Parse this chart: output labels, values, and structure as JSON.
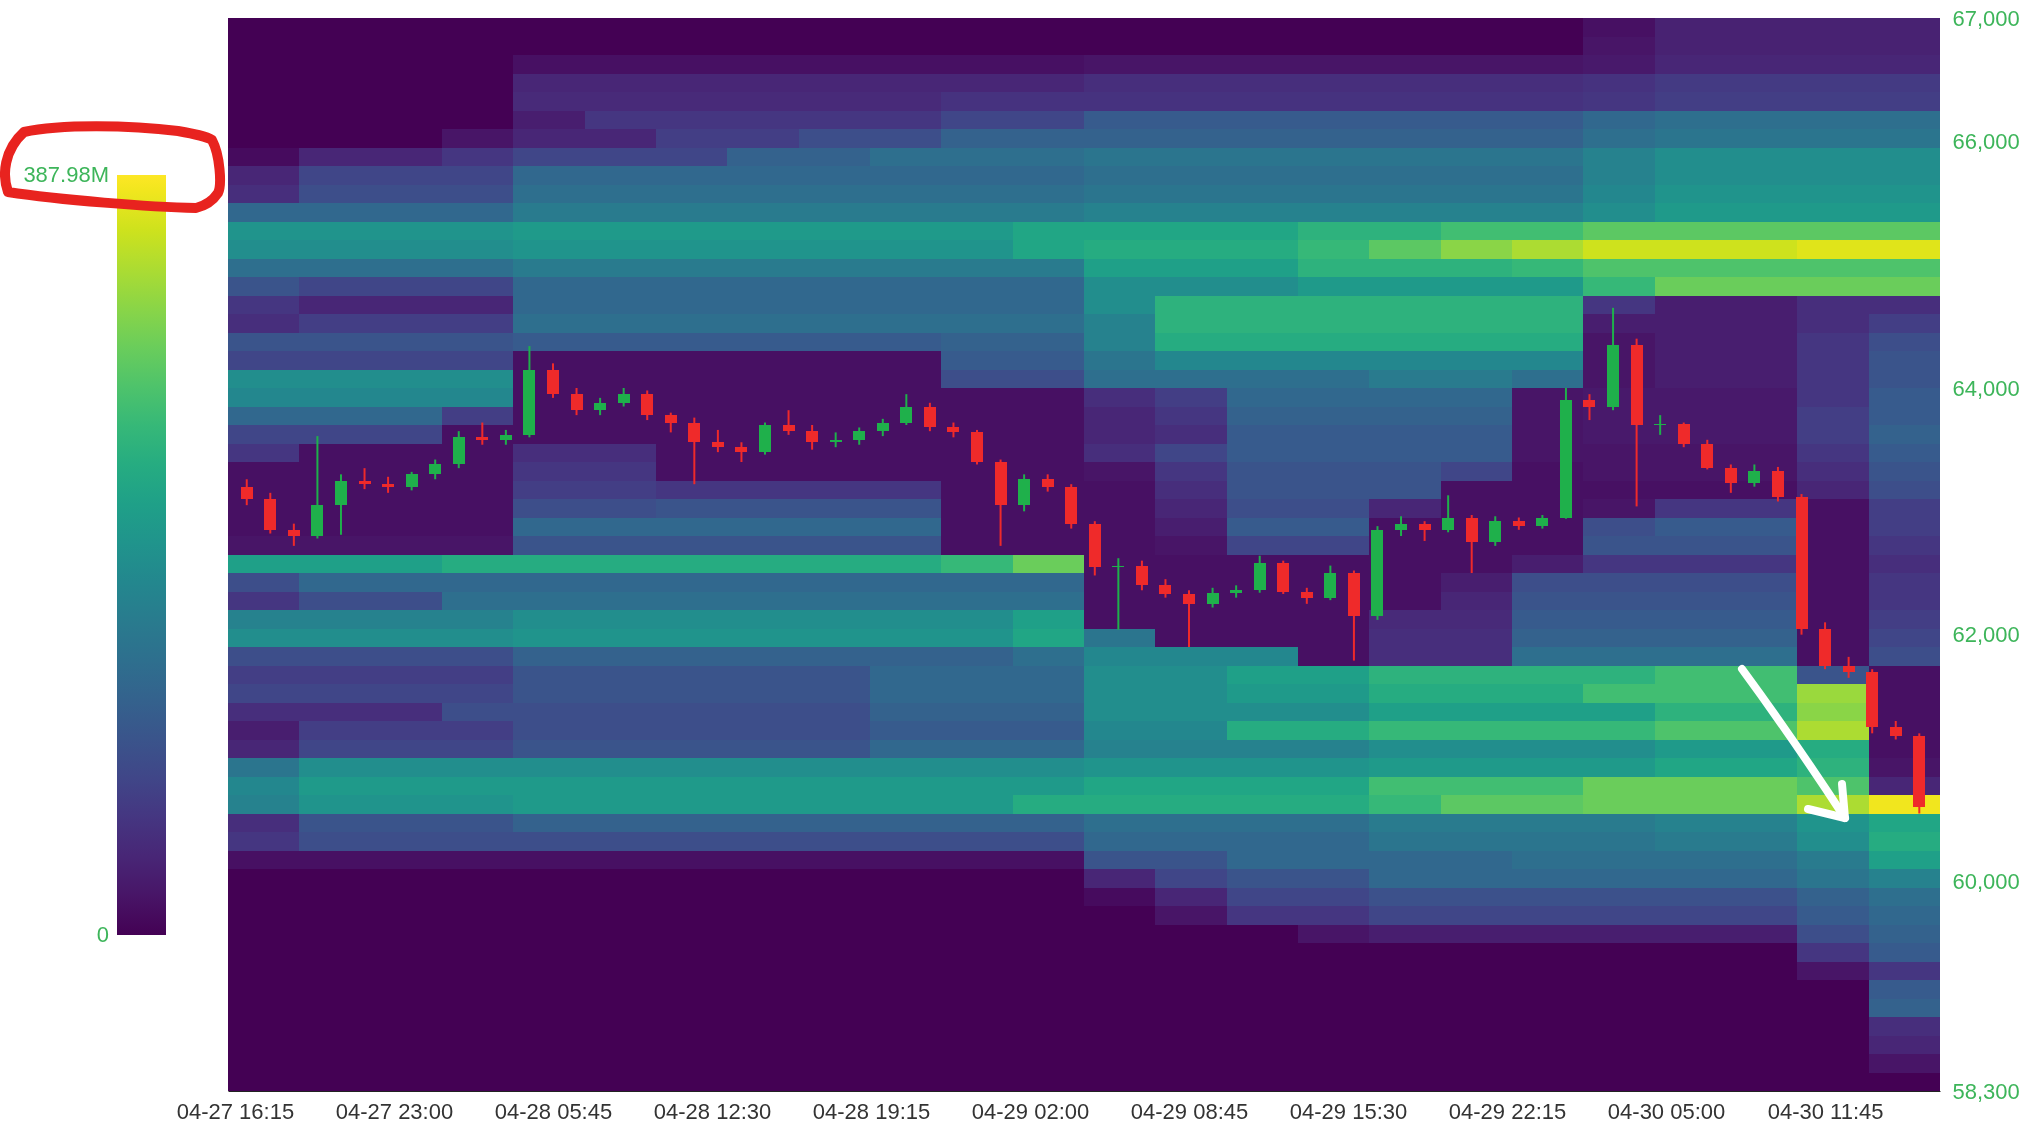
{
  "chart_data": [
    {
      "type": "heatmap",
      "categories": [
        null,
        null,
        null,
        null,
        null,
        null,
        null,
        null,
        null,
        null,
        null,
        null,
        null,
        null,
        null,
        null,
        null,
        null,
        null,
        null,
        null,
        null,
        null,
        null
      ],
      "y_categories": [
        null,
        null,
        null,
        null,
        null,
        null,
        null,
        null,
        null,
        null,
        null,
        null,
        null,
        null,
        null,
        null,
        null,
        null,
        null,
        null,
        null,
        null,
        null,
        null,
        null,
        null,
        null,
        null,
        null,
        null,
        null,
        null,
        null,
        null,
        null,
        null,
        null,
        null,
        null,
        null,
        null,
        null,
        null,
        null,
        null,
        null,
        null,
        null,
        null,
        null,
        null,
        null,
        null,
        null,
        null,
        null,
        null,
        null
      ],
      "cells": [
        [
          0,
          0,
          0,
          0,
          0,
          0,
          0,
          0,
          0,
          0,
          0,
          0,
          0,
          0,
          0,
          0,
          0,
          0,
          0,
          15,
          35,
          35,
          35,
          35
        ],
        [
          0,
          0,
          0,
          0,
          0,
          0,
          0,
          0,
          0,
          0,
          0,
          0,
          0,
          0,
          0,
          0,
          0,
          0,
          0,
          20,
          35,
          35,
          35,
          35
        ],
        [
          0,
          0,
          0,
          0,
          15,
          15,
          15,
          15,
          15,
          15,
          15,
          15,
          20,
          20,
          20,
          20,
          20,
          20,
          20,
          25,
          40,
          40,
          40,
          40
        ],
        [
          0,
          0,
          0,
          0,
          40,
          40,
          40,
          40,
          40,
          40,
          40,
          40,
          50,
          50,
          50,
          50,
          50,
          50,
          50,
          55,
          65,
          65,
          65,
          65
        ],
        [
          0,
          0,
          0,
          0,
          45,
          45,
          45,
          45,
          45,
          45,
          55,
          55,
          55,
          55,
          55,
          55,
          55,
          55,
          55,
          60,
          70,
          70,
          70,
          70
        ],
        [
          0,
          0,
          0,
          0,
          30,
          60,
          60,
          60,
          60,
          60,
          80,
          80,
          110,
          110,
          110,
          110,
          110,
          110,
          110,
          130,
          140,
          140,
          140,
          140
        ],
        [
          0,
          0,
          0,
          20,
          40,
          40,
          70,
          70,
          90,
          90,
          120,
          120,
          120,
          120,
          120,
          120,
          120,
          120,
          120,
          140,
          150,
          150,
          150,
          150
        ],
        [
          10,
          40,
          40,
          60,
          80,
          80,
          80,
          120,
          120,
          140,
          140,
          140,
          150,
          150,
          150,
          150,
          150,
          150,
          150,
          170,
          190,
          190,
          190,
          190
        ],
        [
          40,
          80,
          80,
          80,
          130,
          130,
          130,
          130,
          130,
          130,
          130,
          130,
          140,
          140,
          140,
          140,
          140,
          140,
          140,
          170,
          190,
          190,
          190,
          190
        ],
        [
          50,
          90,
          90,
          90,
          140,
          140,
          140,
          140,
          140,
          140,
          140,
          140,
          150,
          150,
          150,
          150,
          150,
          150,
          150,
          180,
          200,
          200,
          200,
          200
        ],
        [
          130,
          130,
          130,
          130,
          160,
          160,
          160,
          160,
          160,
          160,
          160,
          160,
          170,
          170,
          170,
          170,
          170,
          170,
          170,
          190,
          210,
          210,
          210,
          210
        ],
        [
          200,
          200,
          200,
          200,
          210,
          210,
          210,
          210,
          210,
          210,
          210,
          230,
          230,
          230,
          230,
          250,
          250,
          270,
          270,
          290,
          290,
          290,
          290,
          290
        ],
        [
          190,
          190,
          190,
          190,
          200,
          200,
          200,
          200,
          200,
          200,
          200,
          230,
          240,
          240,
          240,
          260,
          290,
          320,
          340,
          360,
          360,
          360,
          370,
          370
        ],
        [
          140,
          140,
          140,
          140,
          160,
          160,
          160,
          160,
          160,
          160,
          160,
          160,
          220,
          220,
          220,
          250,
          250,
          250,
          260,
          280,
          280,
          280,
          280,
          280
        ],
        [
          100,
          80,
          80,
          80,
          130,
          130,
          130,
          130,
          130,
          130,
          130,
          130,
          190,
          190,
          190,
          210,
          210,
          210,
          210,
          260,
          300,
          300,
          300,
          300
        ],
        [
          60,
          40,
          40,
          40,
          130,
          130,
          130,
          130,
          130,
          130,
          130,
          130,
          190,
          250,
          250,
          250,
          250,
          250,
          250,
          60,
          30,
          30,
          50,
          50
        ],
        [
          50,
          70,
          70,
          70,
          140,
          140,
          140,
          140,
          140,
          140,
          140,
          140,
          170,
          250,
          250,
          250,
          250,
          250,
          250,
          30,
          30,
          30,
          50,
          70
        ],
        [
          100,
          100,
          100,
          100,
          110,
          110,
          110,
          110,
          110,
          110,
          120,
          120,
          170,
          240,
          240,
          240,
          240,
          240,
          240,
          20,
          30,
          30,
          60,
          90
        ],
        [
          80,
          80,
          80,
          80,
          15,
          15,
          15,
          15,
          15,
          15,
          110,
          110,
          150,
          180,
          180,
          180,
          180,
          180,
          180,
          20,
          30,
          30,
          60,
          100
        ],
        [
          190,
          190,
          190,
          190,
          15,
          15,
          15,
          15,
          15,
          15,
          90,
          90,
          140,
          140,
          140,
          140,
          160,
          160,
          140,
          20,
          30,
          30,
          60,
          100
        ],
        [
          180,
          180,
          180,
          180,
          15,
          15,
          15,
          15,
          15,
          15,
          15,
          15,
          50,
          70,
          130,
          130,
          130,
          130,
          20,
          25,
          25,
          25,
          60,
          110
        ],
        [
          130,
          130,
          130,
          70,
          15,
          15,
          15,
          15,
          15,
          15,
          15,
          15,
          40,
          60,
          120,
          120,
          120,
          120,
          20,
          25,
          25,
          25,
          70,
          110
        ],
        [
          80,
          80,
          80,
          15,
          15,
          15,
          15,
          15,
          15,
          15,
          15,
          15,
          40,
          50,
          110,
          110,
          110,
          110,
          20,
          25,
          25,
          25,
          70,
          120
        ],
        [
          60,
          15,
          15,
          15,
          50,
          50,
          15,
          15,
          15,
          15,
          15,
          15,
          50,
          80,
          110,
          110,
          110,
          110,
          20,
          20,
          20,
          20,
          60,
          110
        ],
        [
          15,
          15,
          15,
          15,
          60,
          60,
          15,
          15,
          15,
          15,
          15,
          15,
          20,
          60,
          100,
          100,
          100,
          80,
          15,
          20,
          20,
          20,
          50,
          100
        ],
        [
          15,
          15,
          15,
          15,
          70,
          70,
          60,
          60,
          60,
          60,
          15,
          15,
          15,
          50,
          100,
          100,
          100,
          15,
          15,
          15,
          15,
          15,
          40,
          90
        ],
        [
          15,
          15,
          15,
          15,
          90,
          90,
          100,
          100,
          100,
          100,
          15,
          15,
          15,
          40,
          90,
          90,
          40,
          15,
          15,
          20,
          60,
          60,
          15,
          70
        ],
        [
          15,
          15,
          15,
          15,
          130,
          130,
          130,
          130,
          130,
          130,
          15,
          15,
          15,
          30,
          110,
          110,
          15,
          15,
          15,
          90,
          110,
          110,
          15,
          70
        ],
        [
          20,
          20,
          20,
          20,
          100,
          100,
          100,
          100,
          100,
          100,
          15,
          15,
          15,
          20,
          80,
          80,
          15,
          15,
          15,
          100,
          100,
          100,
          15,
          60
        ],
        [
          220,
          220,
          220,
          240,
          240,
          240,
          240,
          240,
          240,
          240,
          260,
          300,
          15,
          15,
          15,
          15,
          15,
          15,
          30,
          60,
          60,
          60,
          15,
          50
        ],
        [
          90,
          130,
          130,
          130,
          130,
          130,
          130,
          130,
          130,
          130,
          130,
          130,
          15,
          15,
          15,
          15,
          15,
          30,
          90,
          90,
          90,
          90,
          15,
          60
        ],
        [
          60,
          90,
          90,
          140,
          140,
          140,
          140,
          140,
          140,
          140,
          140,
          140,
          15,
          15,
          15,
          15,
          15,
          40,
          100,
          100,
          100,
          100,
          15,
          60
        ],
        [
          170,
          170,
          170,
          170,
          190,
          190,
          190,
          190,
          190,
          190,
          190,
          220,
          15,
          15,
          15,
          15,
          45,
          45,
          110,
          110,
          110,
          110,
          15,
          70
        ],
        [
          190,
          190,
          190,
          190,
          200,
          200,
          200,
          200,
          200,
          200,
          200,
          230,
          150,
          15,
          15,
          15,
          50,
          50,
          120,
          120,
          120,
          120,
          15,
          80
        ],
        [
          90,
          90,
          90,
          90,
          120,
          120,
          120,
          120,
          120,
          120,
          120,
          140,
          180,
          180,
          180,
          15,
          50,
          50,
          140,
          140,
          140,
          140,
          15,
          90
        ],
        [
          70,
          70,
          70,
          70,
          100,
          100,
          100,
          100,
          100,
          130,
          130,
          130,
          190,
          190,
          220,
          220,
          250,
          250,
          250,
          250,
          270,
          270,
          100,
          15
        ],
        [
          80,
          80,
          80,
          80,
          100,
          100,
          100,
          100,
          100,
          130,
          130,
          130,
          190,
          190,
          210,
          210,
          240,
          240,
          240,
          270,
          270,
          270,
          330,
          15
        ],
        [
          50,
          50,
          50,
          90,
          90,
          90,
          90,
          90,
          90,
          120,
          120,
          120,
          190,
          190,
          190,
          190,
          220,
          220,
          220,
          220,
          250,
          250,
          320,
          15
        ],
        [
          30,
          70,
          70,
          70,
          90,
          90,
          90,
          90,
          90,
          110,
          110,
          110,
          180,
          180,
          240,
          240,
          260,
          260,
          260,
          260,
          280,
          280,
          340,
          15
        ],
        [
          40,
          80,
          80,
          80,
          100,
          100,
          100,
          100,
          100,
          130,
          130,
          130,
          170,
          170,
          170,
          170,
          190,
          190,
          190,
          190,
          210,
          210,
          240,
          15
        ],
        [
          150,
          190,
          190,
          190,
          190,
          190,
          190,
          190,
          190,
          190,
          190,
          190,
          200,
          200,
          200,
          200,
          210,
          210,
          210,
          210,
          230,
          230,
          250,
          20
        ],
        [
          180,
          210,
          210,
          210,
          210,
          210,
          210,
          210,
          210,
          210,
          210,
          210,
          230,
          230,
          230,
          230,
          270,
          270,
          270,
          300,
          300,
          300,
          280,
          40
        ],
        [
          170,
          200,
          200,
          200,
          210,
          210,
          210,
          210,
          210,
          210,
          210,
          240,
          240,
          240,
          240,
          240,
          260,
          290,
          290,
          300,
          300,
          300,
          340,
          380
        ],
        [
          50,
          100,
          100,
          100,
          120,
          120,
          120,
          120,
          120,
          120,
          120,
          120,
          140,
          140,
          140,
          140,
          160,
          160,
          160,
          160,
          170,
          170,
          200,
          230
        ],
        [
          60,
          90,
          90,
          90,
          90,
          90,
          90,
          90,
          90,
          90,
          90,
          90,
          130,
          130,
          130,
          130,
          150,
          150,
          150,
          150,
          160,
          160,
          190,
          240
        ],
        [
          15,
          15,
          15,
          15,
          15,
          15,
          15,
          15,
          15,
          15,
          15,
          15,
          100,
          100,
          130,
          130,
          130,
          130,
          140,
          140,
          140,
          140,
          160,
          220
        ],
        [
          0,
          0,
          0,
          0,
          0,
          0,
          0,
          0,
          0,
          0,
          0,
          0,
          40,
          80,
          100,
          100,
          130,
          130,
          130,
          130,
          130,
          130,
          150,
          170
        ],
        [
          0,
          0,
          0,
          0,
          0,
          0,
          0,
          0,
          0,
          0,
          0,
          0,
          10,
          40,
          80,
          80,
          95,
          95,
          95,
          95,
          95,
          95,
          120,
          140
        ],
        [
          0,
          0,
          0,
          0,
          0,
          0,
          0,
          0,
          0,
          0,
          0,
          0,
          0,
          20,
          60,
          60,
          80,
          80,
          80,
          80,
          80,
          80,
          110,
          130
        ],
        [
          0,
          0,
          0,
          0,
          0,
          0,
          0,
          0,
          0,
          0,
          0,
          0,
          0,
          0,
          0,
          20,
          30,
          30,
          30,
          30,
          30,
          30,
          90,
          120
        ],
        [
          0,
          0,
          0,
          0,
          0,
          0,
          0,
          0,
          0,
          0,
          0,
          0,
          0,
          0,
          0,
          0,
          0,
          0,
          0,
          0,
          0,
          0,
          60,
          110
        ],
        [
          0,
          0,
          0,
          0,
          0,
          0,
          0,
          0,
          0,
          0,
          0,
          0,
          0,
          0,
          0,
          0,
          0,
          0,
          0,
          0,
          0,
          0,
          20,
          60
        ],
        [
          0,
          0,
          0,
          0,
          0,
          0,
          0,
          0,
          0,
          0,
          0,
          0,
          0,
          0,
          0,
          0,
          0,
          0,
          0,
          0,
          0,
          0,
          0,
          110
        ],
        [
          0,
          0,
          0,
          0,
          0,
          0,
          0,
          0,
          0,
          0,
          0,
          0,
          0,
          0,
          0,
          0,
          0,
          0,
          0,
          0,
          0,
          0,
          0,
          120
        ],
        [
          0,
          0,
          0,
          0,
          0,
          0,
          0,
          0,
          0,
          0,
          0,
          0,
          0,
          0,
          0,
          0,
          0,
          0,
          0,
          0,
          0,
          0,
          0,
          50
        ],
        [
          0,
          0,
          0,
          0,
          0,
          0,
          0,
          0,
          0,
          0,
          0,
          0,
          0,
          0,
          0,
          0,
          0,
          0,
          0,
          0,
          0,
          0,
          0,
          40
        ],
        [
          0,
          0,
          0,
          0,
          0,
          0,
          0,
          0,
          0,
          0,
          0,
          0,
          0,
          0,
          0,
          0,
          0,
          0,
          0,
          0,
          0,
          0,
          0,
          20
        ],
        [
          0,
          0,
          0,
          0,
          0,
          0,
          0,
          0,
          0,
          0,
          0,
          0,
          0,
          0,
          0,
          0,
          0,
          0,
          0,
          0,
          0,
          0,
          0,
          0
        ]
      ],
      "clim": [
        0,
        387.98
      ],
      "cticks": [
        0,
        {
          "value": 387.98,
          "label": "387.98M"
        }
      ]
    },
    {
      "type": "candlestick",
      "x": [
        "--04-27T16:45",
        "--04-27T17:45",
        "--04-27T18:45",
        "--04-27T19:45",
        "--04-27T20:45",
        "--04-27T21:45",
        "--04-27T22:45",
        "--04-27T23:45",
        "--04-28T00:45",
        "--04-28T01:45",
        "--04-28T02:45",
        "--04-28T03:45",
        "--04-28T04:45",
        "--04-28T05:45",
        "--04-28T06:45",
        "--04-28T07:45",
        "--04-28T08:45",
        "--04-28T09:45",
        "--04-28T10:45",
        "--04-28T11:45",
        "--04-28T12:45",
        "--04-28T13:45",
        "--04-28T14:45",
        "--04-28T15:45",
        "--04-28T16:45",
        "--04-28T17:45",
        "--04-28T18:45",
        "--04-28T19:45",
        "--04-28T20:45",
        "--04-28T21:45",
        "--04-28T22:45",
        "--04-28T23:45",
        "--04-29T00:45",
        "--04-29T01:45",
        "--04-29T02:45",
        "--04-29T03:45",
        "--04-29T04:45",
        "--04-29T05:45",
        "--04-29T06:45",
        "--04-29T07:45",
        "--04-29T08:45",
        "--04-29T09:45",
        "--04-29T10:45",
        "--04-29T11:45",
        "--04-29T12:45",
        "--04-29T13:45",
        "--04-29T14:45",
        "--04-29T15:45",
        "--04-29T16:45",
        "--04-29T17:45",
        "--04-29T18:45",
        "--04-29T19:45",
        "--04-29T20:45",
        "--04-29T21:45",
        "--04-29T22:45",
        "--04-29T23:45",
        "--04-30T00:45",
        "--04-30T01:45",
        "--04-30T02:45",
        "--04-30T03:45",
        "--04-30T04:45",
        "--04-30T05:45",
        "--04-30T06:45",
        "--04-30T07:45",
        "--04-30T08:45",
        "--04-30T09:45",
        "--04-30T10:45",
        "--04-30T11:45",
        "--04-30T12:45",
        "--04-30T13:45",
        "--04-30T14:45",
        "--04-30T15:45"
      ],
      "ohlc": [
        [
          63200,
          63260,
          63050,
          63100
        ],
        [
          63100,
          63150,
          62820,
          62850
        ],
        [
          62850,
          62900,
          62720,
          62800
        ],
        [
          62800,
          63610,
          62780,
          63050
        ],
        [
          63050,
          63300,
          62810,
          63250
        ],
        [
          63250,
          63350,
          63180,
          63220
        ],
        [
          63220,
          63280,
          63150,
          63200
        ],
        [
          63200,
          63320,
          63170,
          63300
        ],
        [
          63300,
          63420,
          63260,
          63380
        ],
        [
          63380,
          63650,
          63350,
          63600
        ],
        [
          63600,
          63720,
          63540,
          63580
        ],
        [
          63580,
          63660,
          63540,
          63620
        ],
        [
          63620,
          64340,
          63600,
          64150
        ],
        [
          64150,
          64200,
          63920,
          63950
        ],
        [
          63950,
          64000,
          63780,
          63820
        ],
        [
          63820,
          63920,
          63780,
          63880
        ],
        [
          63880,
          64000,
          63850,
          63950
        ],
        [
          63950,
          63980,
          63740,
          63780
        ],
        [
          63780,
          63800,
          63640,
          63720
        ],
        [
          63720,
          63760,
          63220,
          63560
        ],
        [
          63560,
          63660,
          63480,
          63520
        ],
        [
          63520,
          63560,
          63400,
          63480
        ],
        [
          63480,
          63720,
          63460,
          63700
        ],
        [
          63700,
          63820,
          63620,
          63650
        ],
        [
          63650,
          63700,
          63500,
          63560
        ],
        [
          63560,
          63640,
          63520,
          63580
        ],
        [
          63580,
          63680,
          63540,
          63650
        ],
        [
          63650,
          63750,
          63610,
          63720
        ],
        [
          63720,
          63950,
          63700,
          63850
        ],
        [
          63850,
          63880,
          63650,
          63680
        ],
        [
          63680,
          63720,
          63600,
          63640
        ],
        [
          63640,
          63660,
          63380,
          63400
        ],
        [
          63400,
          63420,
          62720,
          63050
        ],
        [
          63050,
          63300,
          63000,
          63260
        ],
        [
          63260,
          63300,
          63160,
          63200
        ],
        [
          63200,
          63220,
          62860,
          62900
        ],
        [
          62900,
          62920,
          62480,
          62550
        ],
        [
          62550,
          62620,
          62040,
          62560
        ],
        [
          62560,
          62600,
          62360,
          62400
        ],
        [
          62400,
          62450,
          62300,
          62330
        ],
        [
          62330,
          62360,
          61900,
          62250
        ],
        [
          62250,
          62380,
          62220,
          62340
        ],
        [
          62340,
          62400,
          62300,
          62360
        ],
        [
          62360,
          62640,
          62340,
          62580
        ],
        [
          62580,
          62600,
          62330,
          62350
        ],
        [
          62350,
          62380,
          62250,
          62300
        ],
        [
          62300,
          62560,
          62280,
          62500
        ],
        [
          62500,
          62520,
          61790,
          62150
        ],
        [
          62150,
          62880,
          62120,
          62850
        ],
        [
          62850,
          62960,
          62800,
          62900
        ],
        [
          62900,
          62920,
          62760,
          62850
        ],
        [
          62850,
          63130,
          62830,
          62950
        ],
        [
          62950,
          62970,
          62500,
          62750
        ],
        [
          62750,
          62960,
          62720,
          62920
        ],
        [
          62920,
          62950,
          62850,
          62880
        ],
        [
          62880,
          62970,
          62860,
          62950
        ],
        [
          62950,
          64000,
          62940,
          63900
        ],
        [
          63900,
          63950,
          63740,
          63850
        ],
        [
          63850,
          64650,
          63820,
          64350
        ],
        [
          64350,
          64400,
          63040,
          63700
        ],
        [
          63700,
          63780,
          63620,
          63710
        ],
        [
          63710,
          63720,
          63520,
          63550
        ],
        [
          63550,
          63580,
          63340,
          63350
        ],
        [
          63350,
          63380,
          63150,
          63230
        ],
        [
          63230,
          63380,
          63200,
          63330
        ],
        [
          63330,
          63360,
          63080,
          63120
        ],
        [
          63120,
          63140,
          62000,
          62050
        ],
        [
          62050,
          62100,
          61720,
          61750
        ],
        [
          61750,
          61820,
          61650,
          61700
        ],
        [
          61700,
          61720,
          61200,
          61250
        ],
        [
          61250,
          61300,
          61150,
          61180
        ],
        [
          61180,
          61200,
          60550,
          60600
        ]
      ],
      "colors": [
        "#ef2a2a",
        "#ef2a2a",
        "#ef2a2a",
        "#1fb04b",
        "#1fb04b",
        "#ef2a2a",
        "#ef2a2a",
        "#1fb04b",
        "#1fb04b",
        "#1fb04b",
        "#ef2a2a",
        "#1fb04b",
        "#1fb04b",
        "#ef2a2a",
        "#ef2a2a",
        "#1fb04b",
        "#1fb04b",
        "#ef2a2a",
        "#ef2a2a",
        "#ef2a2a",
        "#ef2a2a",
        "#ef2a2a",
        "#1fb04b",
        "#ef2a2a",
        "#ef2a2a",
        "#1fb04b",
        "#1fb04b",
        "#1fb04b",
        "#1fb04b",
        "#ef2a2a",
        "#ef2a2a",
        "#ef2a2a",
        "#ef2a2a",
        "#1fb04b",
        "#ef2a2a",
        "#ef2a2a",
        "#ef2a2a",
        "#1fb04b",
        "#ef2a2a",
        "#ef2a2a",
        "#ef2a2a",
        "#1fb04b",
        "#1fb04b",
        "#1fb04b",
        "#ef2a2a",
        "#ef2a2a",
        "#1fb04b",
        "#ef2a2a",
        "#1fb04b",
        "#1fb04b",
        "#ef2a2a",
        "#1fb04b",
        "#ef2a2a",
        "#1fb04b",
        "#ef2a2a",
        "#1fb04b",
        "#1fb04b",
        "#ef2a2a",
        "#1fb04b",
        "#ef2a2a",
        "#1fb04b",
        "#ef2a2a",
        "#ef2a2a",
        "#ef2a2a",
        "#1fb04b",
        "#ef2a2a",
        "#ef2a2a",
        "#ef2a2a",
        "#ef2a2a",
        "#ef2a2a",
        "#ef2a2a",
        "#ef2a2a"
      ],
      "xlim": [
        "--04-27T16:10",
        "--04-30T16:25"
      ],
      "xticks": [
        {
          "value": "--04-27T16:15",
          "label": "04-27 16:15"
        },
        {
          "value": "--04-27T23:00",
          "label": "04-27 23:00"
        },
        {
          "value": "--04-28T05:45",
          "label": "04-28 05:45"
        },
        {
          "value": "--04-28T12:30",
          "label": "04-28 12:30"
        },
        {
          "value": "--04-28T19:15",
          "label": "04-28 19:15"
        },
        {
          "value": "--04-29T02:00",
          "label": "04-29 02:00"
        },
        {
          "value": "--04-29T08:45",
          "label": "04-29 08:45"
        },
        {
          "value": "--04-29T15:30",
          "label": "04-29 15:30"
        },
        {
          "value": "--04-29T22:15",
          "label": "04-29 22:15"
        },
        {
          "value": "--04-30T05:00",
          "label": "04-30 05:00"
        },
        {
          "value": "--04-30T11:45",
          "label": "04-30 11:45"
        }
      ],
      "ylim": [
        58300,
        67000
      ],
      "yticks": [
        {
          "value": 58300,
          "label": "58,300"
        },
        {
          "value": 60000,
          "label": "60,000"
        },
        {
          "value": 62000,
          "label": "62,000"
        },
        {
          "value": 64000,
          "label": "64,000"
        },
        {
          "value": 66000,
          "label": "66,000"
        },
        {
          "value": 67000,
          "label": "67,000"
        }
      ]
    }
  ]
}
